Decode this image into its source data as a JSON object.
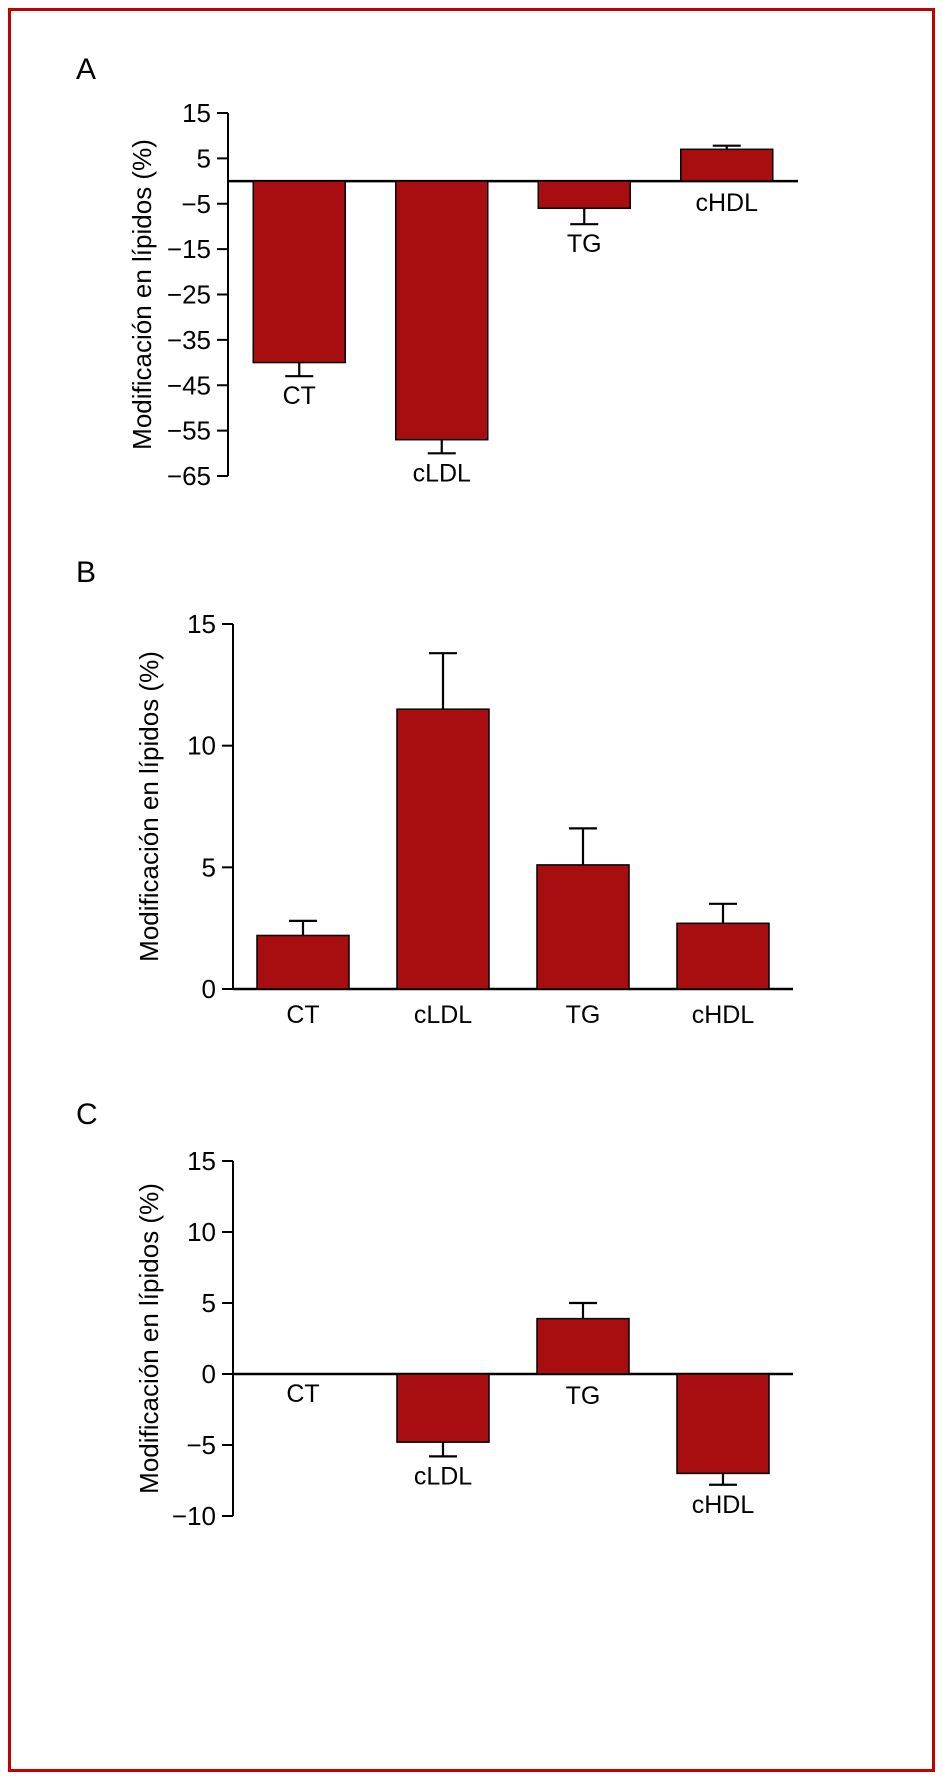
{
  "figure": {
    "bar_color": "#a80d10",
    "frame_color": "#c10000",
    "axis_color": "#000000",
    "background": "#ffffff"
  },
  "chart_data": [
    {
      "type": "bar",
      "panel_label": "A",
      "title": "",
      "xlabel": "",
      "ylabel": "Modificación en lípidos (%)",
      "categories": [
        "CT",
        "cLDL",
        "TG",
        "cHDL"
      ],
      "values": [
        -40,
        -57,
        -6,
        7
      ],
      "errors": [
        3,
        3,
        3.5,
        0.8
      ],
      "ylim": [
        -65,
        15
      ],
      "yticks": [
        15,
        5,
        -5,
        -15,
        -25,
        -35,
        -45,
        -55,
        -65
      ],
      "grid": false,
      "legend": "none"
    },
    {
      "type": "bar",
      "panel_label": "B",
      "title": "",
      "xlabel": "",
      "ylabel": "Modificación en lípidos (%)",
      "categories": [
        "CT",
        "cLDL",
        "TG",
        "cHDL"
      ],
      "values": [
        2.2,
        11.5,
        5.1,
        2.7
      ],
      "errors": [
        0.6,
        2.3,
        1.5,
        0.8
      ],
      "ylim": [
        0,
        15
      ],
      "yticks": [
        15,
        10,
        5,
        0
      ],
      "grid": false,
      "legend": "none"
    },
    {
      "type": "bar",
      "panel_label": "C",
      "title": "",
      "xlabel": "",
      "ylabel": "Modificación en lípidos (%)",
      "categories": [
        "CT",
        "cLDL",
        "TG",
        "cHDL"
      ],
      "values": [
        0,
        -4.8,
        3.9,
        -7
      ],
      "errors": [
        0,
        1,
        1.1,
        0.8
      ],
      "ylim": [
        -10,
        15
      ],
      "yticks": [
        15,
        10,
        5,
        0,
        -5,
        -10
      ],
      "grid": false,
      "legend": "none"
    }
  ]
}
